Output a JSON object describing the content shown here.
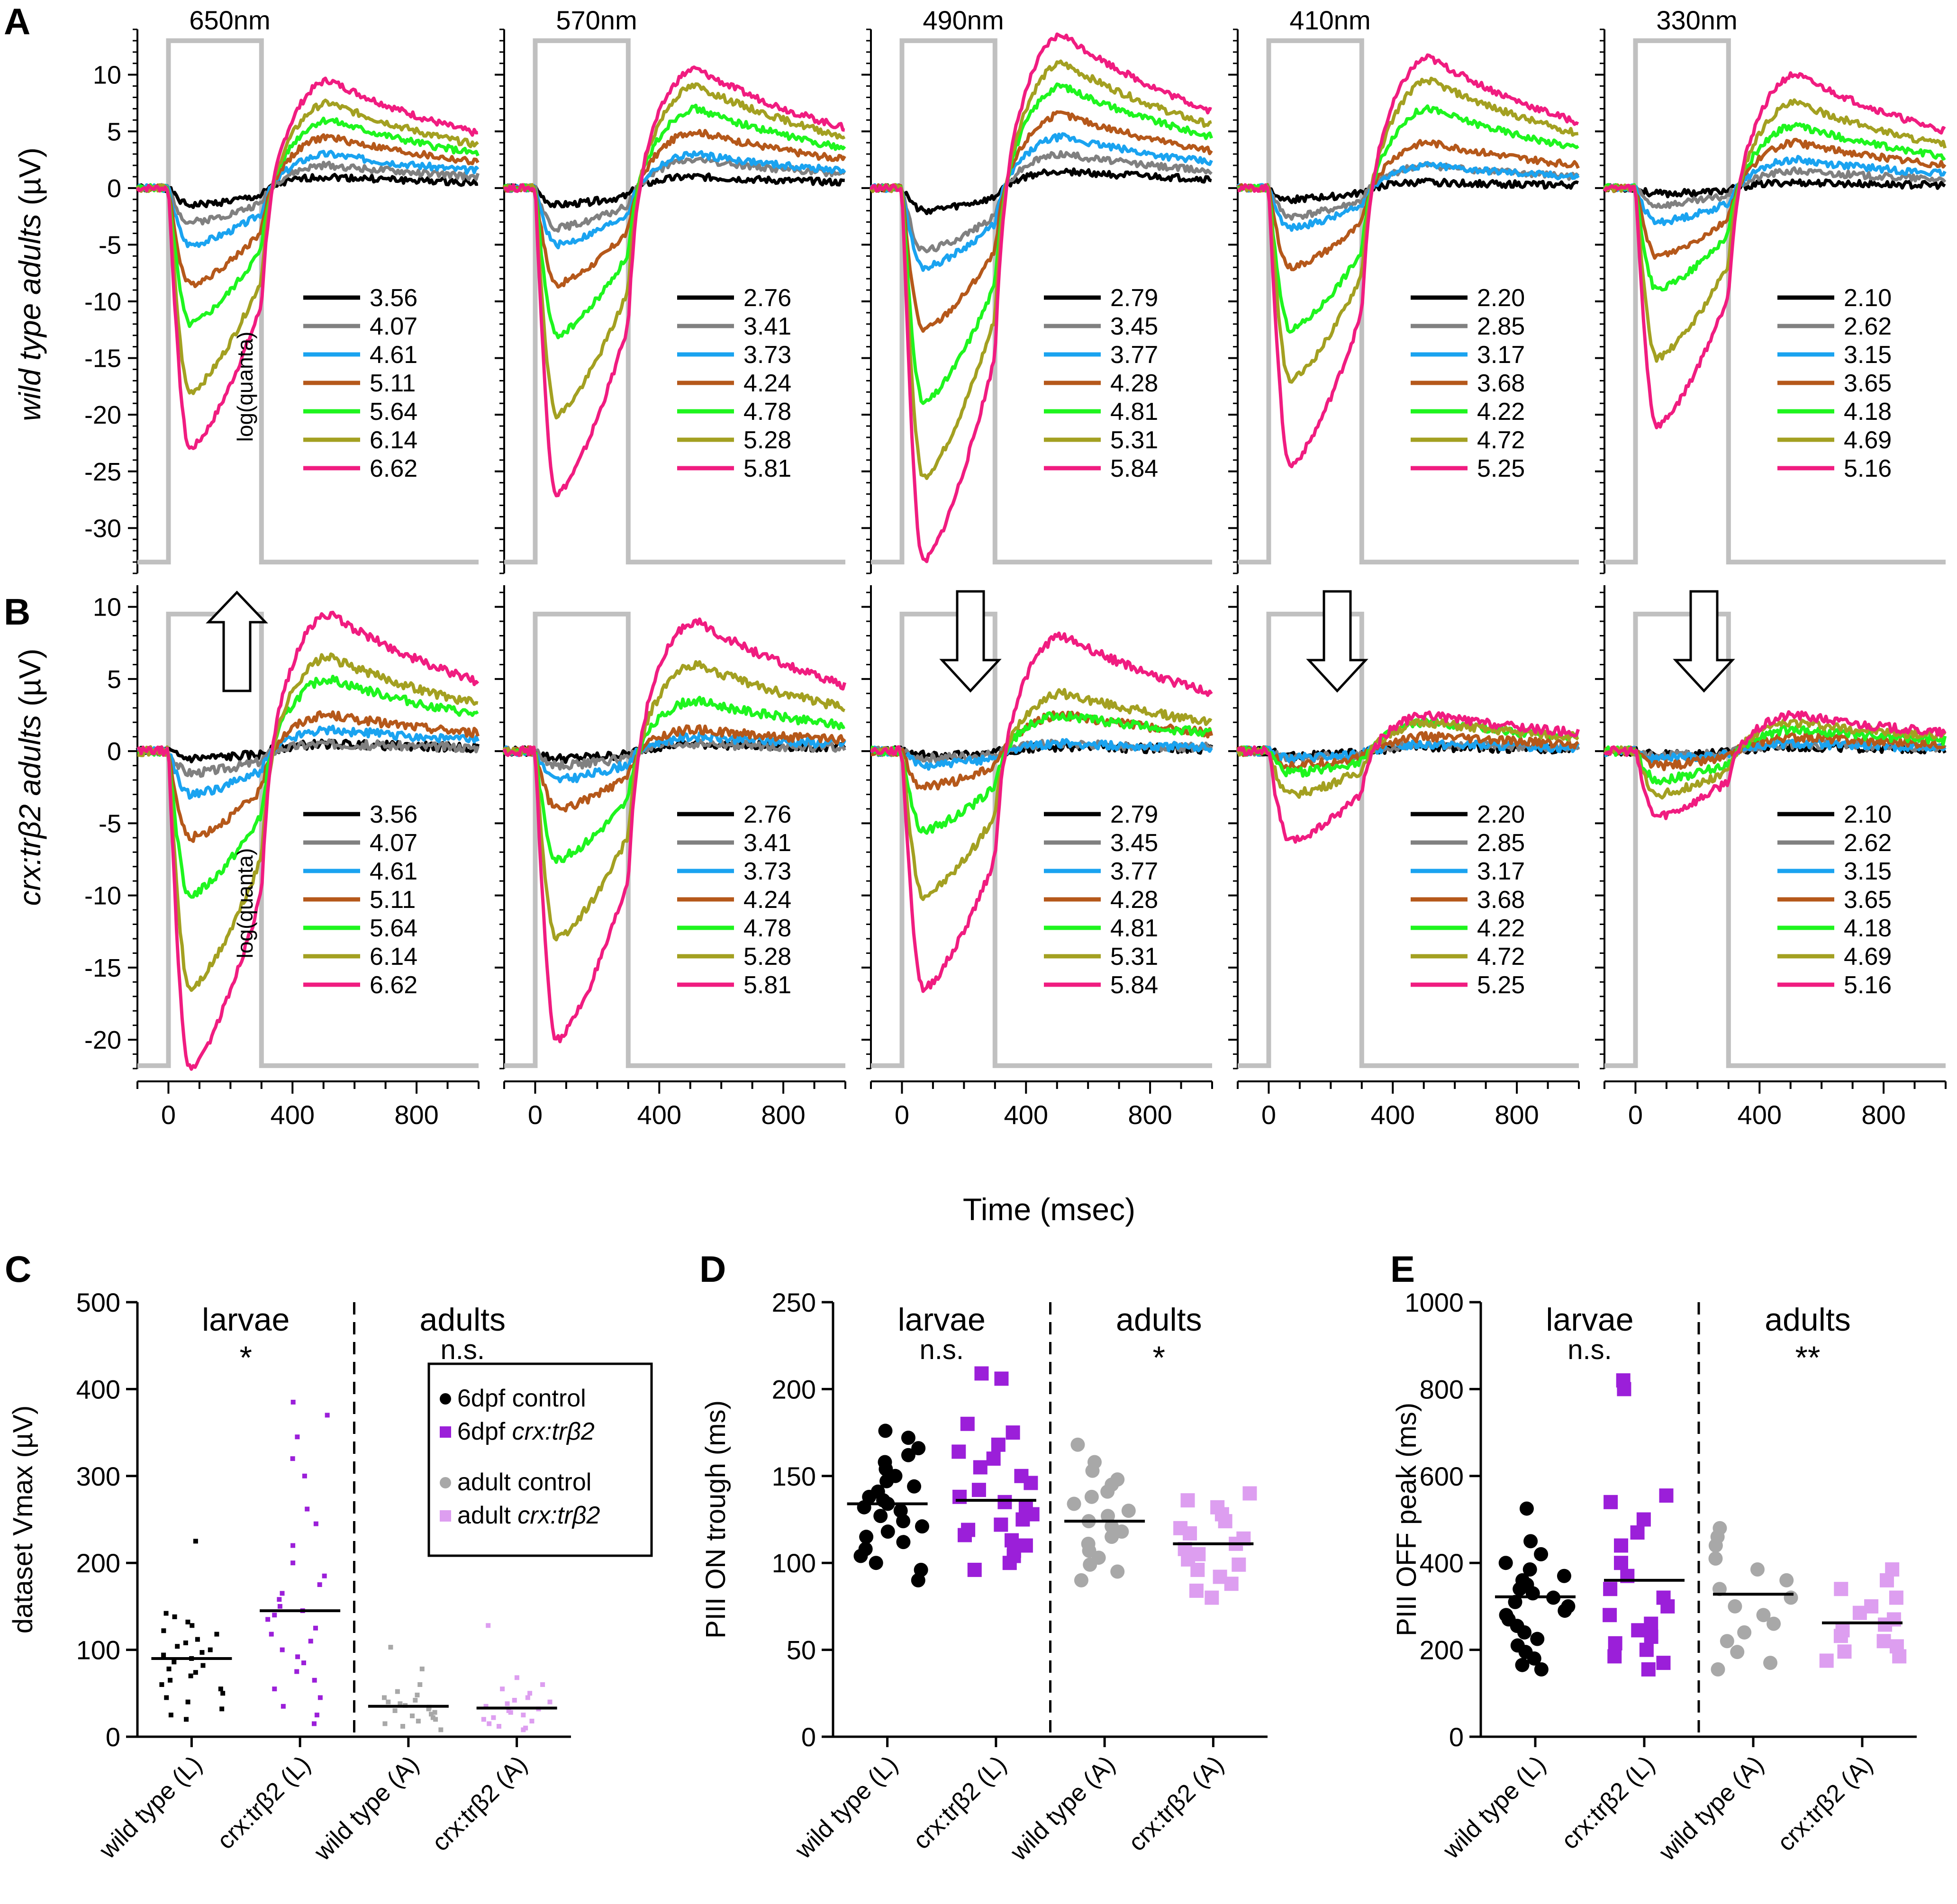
{
  "figure": {
    "time_axis_label": "Time (msec)",
    "time_ticks": [
      "0",
      "400",
      "800"
    ],
    "row_A": {
      "panel_letter": "A",
      "ylabel_italic": "wild type adults",
      "ylabel_unit": " (µV)",
      "yticks": [
        "10",
        "5",
        "0",
        "-5",
        "-10",
        "-15",
        "-20",
        "-25",
        "-30"
      ]
    },
    "row_B": {
      "panel_letter": "B",
      "ylabel_italic": "crx:trβ2 adults",
      "ylabel_unit": " (µV)",
      "yticks": [
        "10",
        "5",
        "0",
        "-5",
        "-10",
        "-15",
        "-20"
      ]
    },
    "legend_title": "log(quanta)",
    "series_colors": [
      "#000000",
      "#808080",
      "#1aa3f0",
      "#b5581a",
      "#1ef51e",
      "#a3a021",
      "#f01c80"
    ],
    "stimulus_color": "#c0c0c0",
    "wavelengths": [
      "650nm",
      "570nm",
      "490nm",
      "410nm",
      "330nm"
    ]
  },
  "chart_data": [
    {
      "type": "line",
      "title": "650nm",
      "row": "A",
      "ylim": [
        -34,
        14
      ],
      "x_range_ms": [
        -100,
        1000
      ],
      "stimulus_on_off_ms": [
        0,
        300
      ],
      "series": [
        {
          "name": "3.56",
          "trough": -1.5,
          "peak": 1.0
        },
        {
          "name": "4.07",
          "trough": -3.0,
          "peak": 2.0
        },
        {
          "name": "4.61",
          "trough": -5.0,
          "peak": 3.0
        },
        {
          "name": "5.11",
          "trough": -8.5,
          "peak": 4.5
        },
        {
          "name": "5.64",
          "trough": -12.0,
          "peak": 6.0
        },
        {
          "name": "6.14",
          "trough": -18.0,
          "peak": 7.5
        },
        {
          "name": "6.62",
          "trough": -23.0,
          "peak": 9.5
        }
      ]
    },
    {
      "type": "line",
      "title": "570nm",
      "row": "A",
      "ylim": [
        -34,
        14
      ],
      "x_range_ms": [
        -100,
        1000
      ],
      "stimulus_on_off_ms": [
        0,
        300
      ],
      "series": [
        {
          "name": "2.76",
          "trough": -1.5,
          "peak": 1.0
        },
        {
          "name": "3.41",
          "trough": -3.5,
          "peak": 2.5
        },
        {
          "name": "3.73",
          "trough": -5.0,
          "peak": 3.0
        },
        {
          "name": "4.24",
          "trough": -8.5,
          "peak": 5.0
        },
        {
          "name": "4.78",
          "trough": -13.0,
          "peak": 7.0
        },
        {
          "name": "5.28",
          "trough": -20.0,
          "peak": 9.0
        },
        {
          "name": "5.81",
          "trough": -27.0,
          "peak": 10.5
        }
      ]
    },
    {
      "type": "line",
      "title": "490nm",
      "row": "A",
      "ylim": [
        -34,
        14
      ],
      "x_range_ms": [
        -100,
        1000
      ],
      "stimulus_on_off_ms": [
        0,
        300
      ],
      "series": [
        {
          "name": "2.79",
          "trough": -2.0,
          "peak": 1.5
        },
        {
          "name": "3.45",
          "trough": -5.5,
          "peak": 3.0
        },
        {
          "name": "3.77",
          "trough": -7.0,
          "peak": 4.5
        },
        {
          "name": "4.28",
          "trough": -12.5,
          "peak": 6.5
        },
        {
          "name": "4.81",
          "trough": -19.0,
          "peak": 9.0
        },
        {
          "name": "5.31",
          "trough": -25.5,
          "peak": 11.0
        },
        {
          "name": "5.84",
          "trough": -33.0,
          "peak": 13.5
        }
      ]
    },
    {
      "type": "line",
      "title": "410nm",
      "row": "A",
      "ylim": [
        -34,
        14
      ],
      "x_range_ms": [
        -100,
        1000
      ],
      "stimulus_on_off_ms": [
        0,
        300
      ],
      "series": [
        {
          "name": "2.20",
          "trough": -1.0,
          "peak": 0.5
        },
        {
          "name": "2.85",
          "trough": -2.5,
          "peak": 2.0
        },
        {
          "name": "3.17",
          "trough": -3.5,
          "peak": 2.0
        },
        {
          "name": "3.68",
          "trough": -7.0,
          "peak": 4.0
        },
        {
          "name": "4.22",
          "trough": -12.5,
          "peak": 7.0
        },
        {
          "name": "4.72",
          "trough": -17.0,
          "peak": 9.5
        },
        {
          "name": "5.25",
          "trough": -24.5,
          "peak": 11.5
        }
      ]
    },
    {
      "type": "line",
      "title": "330nm",
      "row": "A",
      "ylim": [
        -34,
        14
      ],
      "x_range_ms": [
        -100,
        1000
      ],
      "stimulus_on_off_ms": [
        0,
        300
      ],
      "series": [
        {
          "name": "2.10",
          "trough": -0.5,
          "peak": 0.5
        },
        {
          "name": "2.62",
          "trough": -1.5,
          "peak": 1.5
        },
        {
          "name": "3.15",
          "trough": -3.0,
          "peak": 2.5
        },
        {
          "name": "3.65",
          "trough": -6.0,
          "peak": 4.0
        },
        {
          "name": "4.18",
          "trough": -9.0,
          "peak": 5.5
        },
        {
          "name": "4.69",
          "trough": -15.0,
          "peak": 7.5
        },
        {
          "name": "5.16",
          "trough": -21.0,
          "peak": 10.0
        }
      ]
    },
    {
      "type": "line",
      "title": "650nm",
      "row": "B",
      "ylim": [
        -22,
        11.5
      ],
      "x_range_ms": [
        -100,
        1000
      ],
      "stimulus_on_off_ms": [
        0,
        300
      ],
      "arrow": "up",
      "series": [
        {
          "name": "3.56",
          "trough": -0.5,
          "peak": 0.5
        },
        {
          "name": "4.07",
          "trough": -1.5,
          "peak": 0.5
        },
        {
          "name": "4.61",
          "trough": -3.0,
          "peak": 1.5
        },
        {
          "name": "5.11",
          "trough": -6.0,
          "peak": 2.5
        },
        {
          "name": "5.64",
          "trough": -10.0,
          "peak": 5.0
        },
        {
          "name": "6.14",
          "trough": -16.5,
          "peak": 6.5
        },
        {
          "name": "6.62",
          "trough": -22.0,
          "peak": 9.5
        }
      ]
    },
    {
      "type": "line",
      "title": "570nm",
      "row": "B",
      "ylim": [
        -22,
        11.5
      ],
      "x_range_ms": [
        -100,
        1000
      ],
      "stimulus_on_off_ms": [
        0,
        300
      ],
      "series": [
        {
          "name": "2.76",
          "trough": -0.5,
          "peak": 0.5
        },
        {
          "name": "3.41",
          "trough": -1.0,
          "peak": 0.5
        },
        {
          "name": "3.73",
          "trough": -2.0,
          "peak": 1.0
        },
        {
          "name": "4.24",
          "trough": -4.0,
          "peak": 1.5
        },
        {
          "name": "4.78",
          "trough": -7.5,
          "peak": 3.5
        },
        {
          "name": "5.28",
          "trough": -13.0,
          "peak": 6.0
        },
        {
          "name": "5.81",
          "trough": -20.0,
          "peak": 9.0
        }
      ]
    },
    {
      "type": "line",
      "title": "490nm",
      "row": "B",
      "ylim": [
        -22,
        11.5
      ],
      "x_range_ms": [
        -100,
        1000
      ],
      "stimulus_on_off_ms": [
        0,
        300
      ],
      "arrow": "down",
      "series": [
        {
          "name": "2.79",
          "trough": -0.3,
          "peak": 0.3
        },
        {
          "name": "3.45",
          "trough": -0.5,
          "peak": 0.5
        },
        {
          "name": "3.77",
          "trough": -1.0,
          "peak": 0.5
        },
        {
          "name": "4.28",
          "trough": -2.5,
          "peak": 2.5
        },
        {
          "name": "4.81",
          "trough": -5.5,
          "peak": 2.5
        },
        {
          "name": "5.31",
          "trough": -10.0,
          "peak": 4.0
        },
        {
          "name": "5.84",
          "trough": -16.5,
          "peak": 8.0
        }
      ]
    },
    {
      "type": "line",
      "title": "410nm",
      "row": "B",
      "ylim": [
        -22,
        11.5
      ],
      "x_range_ms": [
        -100,
        1000
      ],
      "stimulus_on_off_ms": [
        0,
        300
      ],
      "arrow": "down",
      "series": [
        {
          "name": "2.20",
          "trough": -0.3,
          "peak": 0.3
        },
        {
          "name": "2.85",
          "trough": -0.5,
          "peak": 0.5
        },
        {
          "name": "3.17",
          "trough": -0.5,
          "peak": 0.5
        },
        {
          "name": "3.68",
          "trough": -1.0,
          "peak": 1.0
        },
        {
          "name": "4.22",
          "trough": -1.5,
          "peak": 2.0
        },
        {
          "name": "4.72",
          "trough": -3.0,
          "peak": 2.0
        },
        {
          "name": "5.25",
          "trough": -6.3,
          "peak": 2.5
        }
      ]
    },
    {
      "type": "line",
      "title": "330nm",
      "row": "B",
      "ylim": [
        -22,
        11.5
      ],
      "x_range_ms": [
        -100,
        1000
      ],
      "stimulus_on_off_ms": [
        0,
        300
      ],
      "arrow": "down",
      "series": [
        {
          "name": "2.10",
          "trough": -0.2,
          "peak": 0.3
        },
        {
          "name": "2.62",
          "trough": -0.3,
          "peak": 0.5
        },
        {
          "name": "3.15",
          "trough": -0.5,
          "peak": 0.5
        },
        {
          "name": "3.65",
          "trough": -1.0,
          "peak": 1.0
        },
        {
          "name": "4.18",
          "trough": -2.0,
          "peak": 1.5
        },
        {
          "name": "4.69",
          "trough": -3.0,
          "peak": 2.0
        },
        {
          "name": "5.16",
          "trough": -4.5,
          "peak": 2.5
        }
      ]
    },
    {
      "type": "scatter",
      "panel_letter": "C",
      "ylabel": "dataset Vmax (µV)",
      "ylim": [
        0,
        500
      ],
      "yticks": [
        "0",
        "100",
        "200",
        "300",
        "400",
        "500"
      ],
      "group_labels": [
        "larvae",
        "adults"
      ],
      "significance": [
        "*",
        "n.s."
      ],
      "categories": [
        "wild type (L)",
        "crx:trβ2 (L)",
        "wild type (A)",
        "crx:trβ2 (A)"
      ],
      "legend": [
        {
          "prefix": "6dpf ",
          "name": "control"
        },
        {
          "prefix": "6dpf ",
          "name": "crx:trβ2"
        },
        {
          "prefix": "adult ",
          "name": "control"
        },
        {
          "prefix": "adult ",
          "name": "crx:trβ2"
        }
      ],
      "series": [
        {
          "color": "#000000",
          "marker": "dot",
          "mean": 90,
          "values": [
            225,
            142,
            138,
            132,
            128,
            122,
            118,
            112,
            108,
            104,
            100,
            97,
            94,
            90,
            86,
            82,
            78,
            74,
            70,
            65,
            60,
            55,
            50,
            45,
            40,
            32,
            25,
            20
          ]
        },
        {
          "color": "#9b1fd9",
          "marker": "dot",
          "mean": 145,
          "values": [
            385,
            370,
            345,
            320,
            300,
            262,
            245,
            220,
            200,
            185,
            175,
            165,
            158,
            150,
            145,
            140,
            135,
            125,
            118,
            110,
            100,
            92,
            85,
            75,
            65,
            55,
            45,
            35,
            25,
            15
          ]
        },
        {
          "color": "#a8a8a8",
          "marker": "dot",
          "mean": 35,
          "values": [
            103,
            78,
            60,
            52,
            48,
            45,
            42,
            40,
            38,
            36,
            34,
            32,
            30,
            28,
            26,
            24,
            22,
            20,
            18,
            15,
            12,
            8
          ]
        },
        {
          "color": "#dd9ef0",
          "marker": "dot",
          "mean": 33,
          "values": [
            128,
            68,
            60,
            55,
            50,
            45,
            42,
            40,
            38,
            35,
            32,
            30,
            28,
            25,
            22,
            20,
            18,
            15,
            12,
            10,
            8
          ]
        }
      ]
    },
    {
      "type": "scatter",
      "panel_letter": "D",
      "ylabel": "PIII ON trough (ms)",
      "ylim": [
        0,
        250
      ],
      "yticks": [
        "0",
        "50",
        "100",
        "150",
        "200",
        "250"
      ],
      "group_labels": [
        "larvae",
        "adults"
      ],
      "significance": [
        "n.s.",
        "*"
      ],
      "categories": [
        "wild type (L)",
        "crx:trβ2 (L)",
        "wild type (A)",
        "crx:trβ2 (A)"
      ],
      "series": [
        {
          "color": "#000000",
          "marker": "circle",
          "mean": 134,
          "values": [
            176,
            172,
            166,
            162,
            158,
            154,
            150,
            147,
            144,
            141,
            138,
            136,
            134,
            132,
            130,
            127,
            124,
            121,
            118,
            115,
            112,
            108,
            104,
            100,
            96,
            90
          ]
        },
        {
          "color": "#9b1fd9",
          "marker": "square",
          "mean": 136,
          "values": [
            209,
            206,
            180,
            175,
            168,
            164,
            160,
            155,
            150,
            146,
            142,
            138,
            135,
            132,
            128,
            125,
            122,
            119,
            116,
            113,
            110,
            107,
            104,
            100,
            96
          ]
        },
        {
          "color": "#a8a8a8",
          "marker": "circle",
          "mean": 124,
          "values": [
            168,
            158,
            153,
            148,
            145,
            141,
            138,
            134,
            130,
            127,
            124,
            121,
            118,
            115,
            111,
            107,
            103,
            99,
            95,
            90
          ]
        },
        {
          "color": "#dd9ef0",
          "marker": "square",
          "mean": 111,
          "values": [
            140,
            136,
            132,
            128,
            124,
            120,
            117,
            114,
            111,
            108,
            105,
            102,
            99,
            96,
            92,
            88,
            84,
            80
          ]
        }
      ]
    },
    {
      "type": "scatter",
      "panel_letter": "E",
      "ylabel": "PIII OFF peak (ms)",
      "ylim": [
        0,
        1000
      ],
      "yticks": [
        "0",
        "200",
        "400",
        "600",
        "800",
        "1000"
      ],
      "group_labels": [
        "larvae",
        "adults"
      ],
      "significance": [
        "n.s.",
        "**"
      ],
      "categories": [
        "wild type (L)",
        "crx:trβ2 (L)",
        "wild type (A)",
        "crx:trβ2 (A)"
      ],
      "series": [
        {
          "color": "#000000",
          "marker": "circle",
          "mean": 322,
          "values": [
            525,
            450,
            420,
            400,
            385,
            370,
            360,
            350,
            340,
            330,
            320,
            310,
            300,
            290,
            280,
            270,
            255,
            240,
            225,
            210,
            195,
            180,
            165,
            155
          ]
        },
        {
          "color": "#9b1fd9",
          "marker": "square",
          "mean": 360,
          "values": [
            820,
            800,
            555,
            540,
            500,
            470,
            440,
            400,
            370,
            340,
            320,
            300,
            280,
            260,
            245,
            230,
            215,
            200,
            185,
            170,
            155
          ]
        },
        {
          "color": "#a8a8a8",
          "marker": "circle",
          "mean": 328,
          "values": [
            480,
            460,
            440,
            410,
            385,
            360,
            340,
            320,
            300,
            280,
            260,
            240,
            220,
            195,
            170,
            155
          ]
        },
        {
          "color": "#dd9ef0",
          "marker": "square",
          "mean": 262,
          "values": [
            385,
            360,
            340,
            320,
            300,
            285,
            270,
            258,
            245,
            232,
            220,
            208,
            196,
            185,
            175
          ]
        }
      ]
    }
  ]
}
